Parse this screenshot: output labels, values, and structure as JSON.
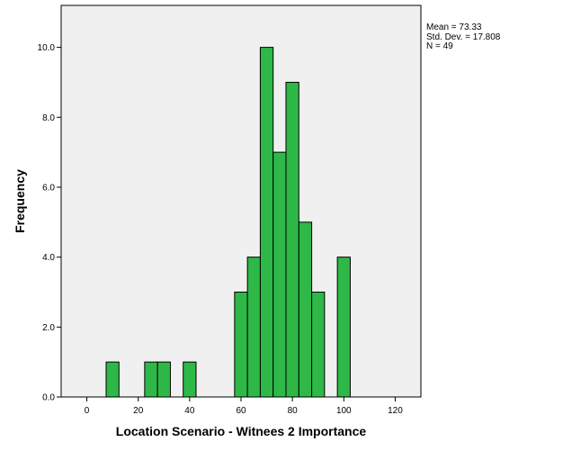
{
  "chart_data": {
    "type": "bar",
    "subtype": "histogram",
    "xlabel": "Location Scenario - Witnees 2 Importance",
    "ylabel": "Frequency",
    "xlim": [
      -10,
      130
    ],
    "ylim": [
      0,
      11.2
    ],
    "xticks": [
      0,
      20,
      40,
      60,
      80,
      100,
      120
    ],
    "yticks": [
      0,
      2,
      4,
      6,
      8,
      10
    ],
    "xtick_labels": [
      "0",
      "20",
      "40",
      "60",
      "80",
      "100",
      "120"
    ],
    "ytick_labels": [
      "0.0",
      "2.0",
      "4.0",
      "6.0",
      "8.0",
      "10.0"
    ],
    "bin_width": 5,
    "bins": [
      {
        "x0": 7.5,
        "x1": 12.5,
        "count": 1
      },
      {
        "x0": 22.5,
        "x1": 27.5,
        "count": 1
      },
      {
        "x0": 27.5,
        "x1": 32.5,
        "count": 1
      },
      {
        "x0": 37.5,
        "x1": 42.5,
        "count": 1
      },
      {
        "x0": 57.5,
        "x1": 62.5,
        "count": 3
      },
      {
        "x0": 62.5,
        "x1": 67.5,
        "count": 4
      },
      {
        "x0": 67.5,
        "x1": 72.5,
        "count": 10
      },
      {
        "x0": 72.5,
        "x1": 77.5,
        "count": 7
      },
      {
        "x0": 77.5,
        "x1": 82.5,
        "count": 9
      },
      {
        "x0": 82.5,
        "x1": 87.5,
        "count": 5
      },
      {
        "x0": 87.5,
        "x1": 92.5,
        "count": 3
      },
      {
        "x0": 97.5,
        "x1": 102.5,
        "count": 4
      }
    ],
    "stats": {
      "mean": "Mean = 73.33",
      "std_dev": "Std. Dev. = 17.808",
      "n": "N = 49"
    },
    "colors": {
      "bar_fill": "#2eb847",
      "plot_background": "#f0f0f0"
    },
    "grid": false
  }
}
